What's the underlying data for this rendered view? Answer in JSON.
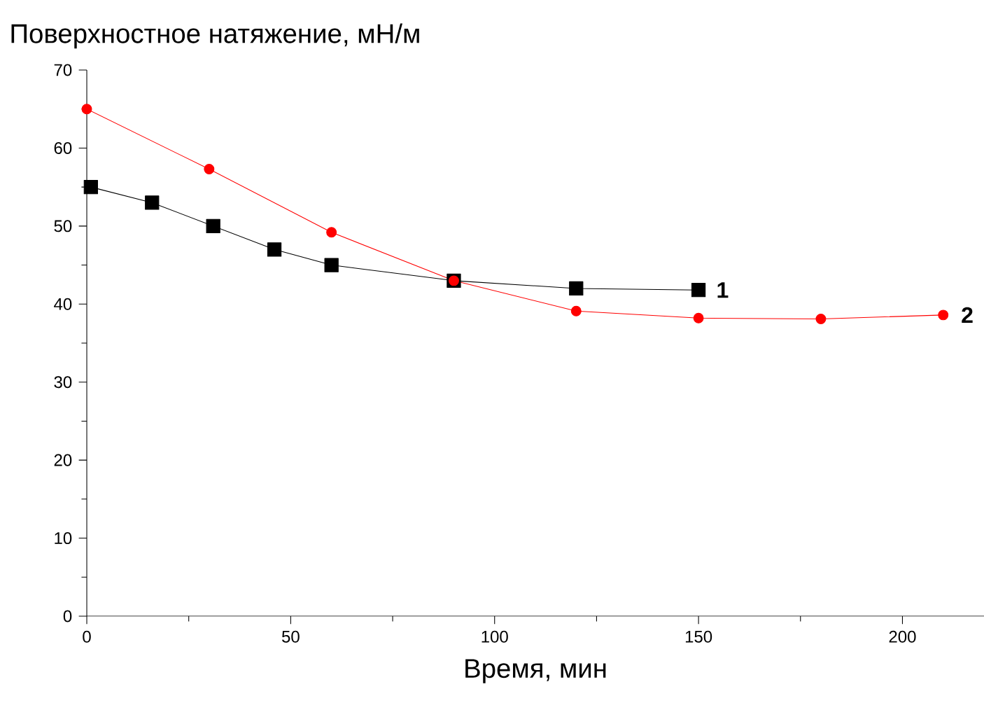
{
  "chart_data": {
    "type": "line",
    "xlabel": "Время, мин",
    "ylabel": "Поверхностное натяжение, мН/м",
    "xlim": [
      0,
      220
    ],
    "xticks": [
      0,
      50,
      100,
      150,
      200
    ],
    "ylim": [
      0,
      70
    ],
    "yticks": [
      0,
      10,
      20,
      30,
      40,
      50,
      60,
      70
    ],
    "grid": false,
    "legend": false,
    "series": [
      {
        "name": "1",
        "color": "#000000",
        "marker": "square",
        "x": [
          1,
          16,
          31,
          46,
          60,
          90,
          120,
          150
        ],
        "values": [
          55,
          53,
          50,
          47,
          45,
          43,
          42,
          41.8
        ]
      },
      {
        "name": "2",
        "color": "#ff0000",
        "marker": "circle",
        "x": [
          0,
          30,
          60,
          90,
          120,
          150,
          180,
          210
        ],
        "values": [
          65,
          57.3,
          49.2,
          43,
          39.1,
          38.2,
          38.1,
          38.6
        ]
      }
    ]
  }
}
